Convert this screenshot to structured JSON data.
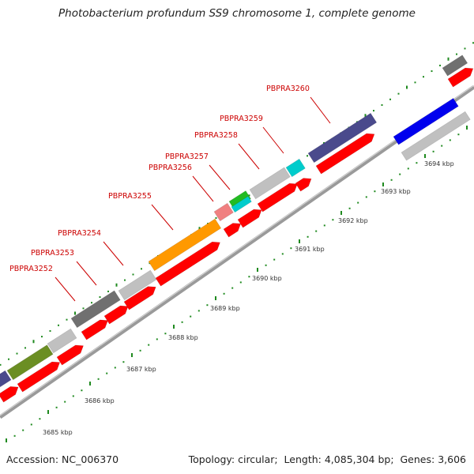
{
  "title": "Photobacterium profundum SS9 chromosome 1, complete genome",
  "footer": {
    "accession_label": "Accession:",
    "accession": "NC_006370",
    "topology_label": "Topology:",
    "topology": "circular",
    "length_label": "Length:",
    "length": "4,085,304 bp",
    "genes_label": "Genes:",
    "genes": "3,606"
  },
  "colors": {
    "backbone": "#9a9a9a",
    "tick": "#1f8a1f",
    "label_red": "#cc0000",
    "cds": "#ff0000"
  },
  "scale": {
    "ticks": [
      "3685 kbp",
      "3686 kbp",
      "3687 kbp",
      "3688 kbp",
      "3689 kbp",
      "3690 kbp",
      "3691 kbp",
      "3692 kbp",
      "3693 kbp",
      "3694 kbp"
    ]
  },
  "features": [
    {
      "label": "",
      "color": "#4a4a8c"
    },
    {
      "label": "",
      "color": "#6b8e23"
    },
    {
      "label": "",
      "color": "#c0c0c0"
    },
    {
      "label": "PBPRA3252",
      "color": "#707070"
    },
    {
      "label": "PBPRA3253",
      "color": "#707070"
    },
    {
      "label": "PBPRA3254",
      "color": "#c0c0c0"
    },
    {
      "label": "PBPRA3255",
      "color": "#ff9900"
    },
    {
      "label": "PBPRA3256",
      "color": "#f08080"
    },
    {
      "label": "PBPRA3257",
      "color": "#22bb22"
    },
    {
      "label": "PBPRA3257",
      "color": "#00cccc"
    },
    {
      "label": "PBPRA3258",
      "color": "#c0c0c0"
    },
    {
      "label": "PBPRA3259",
      "color": "#00cccc"
    },
    {
      "label": "PBPRA3260",
      "color": "#4a4a8c"
    },
    {
      "label": "",
      "color": "#0000ee"
    },
    {
      "label": "",
      "color": "#c0c0c0"
    },
    {
      "label": "",
      "color": "#707070"
    }
  ],
  "gene_labels": [
    "PBPRA3252",
    "PBPRA3253",
    "PBPRA3254",
    "PBPRA3255",
    "PBPRA3256",
    "PBPRA3257",
    "PBPRA3258",
    "PBPRA3259",
    "PBPRA3260"
  ]
}
